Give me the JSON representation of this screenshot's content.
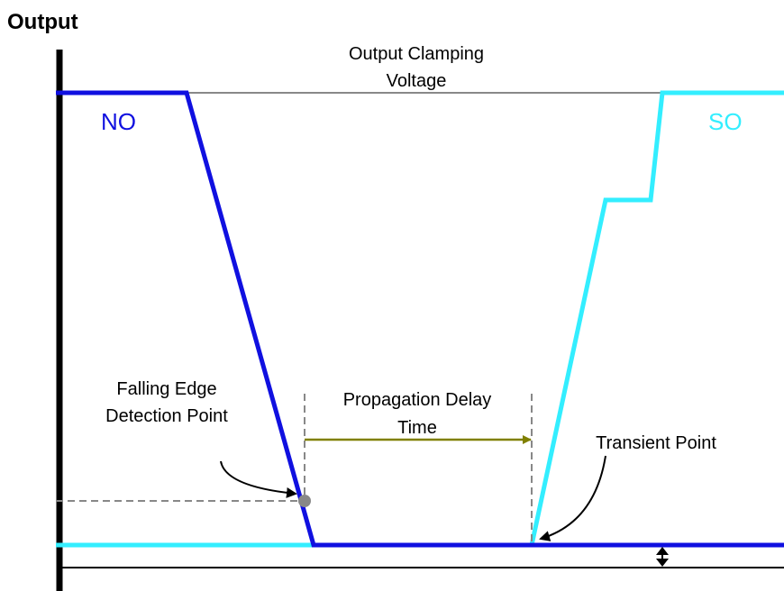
{
  "title": "Output",
  "labels": {
    "clamping": [
      "Output Clamping",
      "Voltage"
    ],
    "no": "NO",
    "so": "SO",
    "falling": [
      "Falling Edge",
      "Detection Point"
    ],
    "delay": [
      "Propagation Delay",
      "Time"
    ],
    "transient": "Transient Point"
  }
}
